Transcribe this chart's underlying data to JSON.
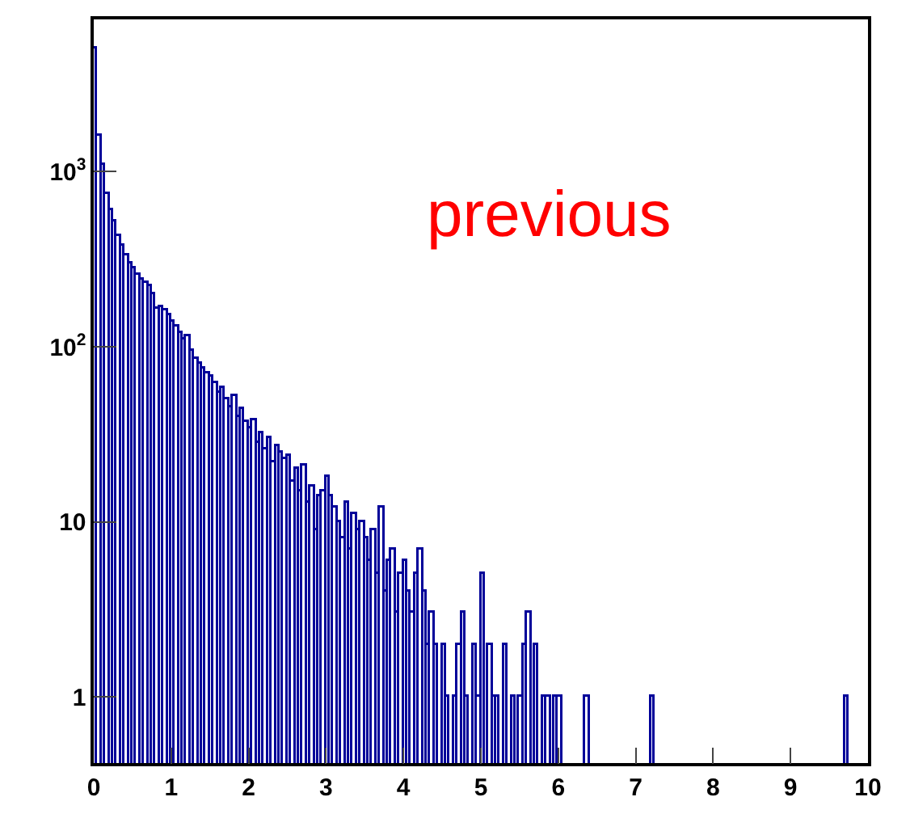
{
  "chart_data": {
    "type": "histogram",
    "bins": [
      0,
      0.05,
      0.1,
      0.15,
      0.2,
      0.25,
      0.3,
      0.35,
      0.4,
      0.45,
      0.5,
      0.55,
      0.6,
      0.65,
      0.7,
      0.75,
      0.8,
      0.85,
      0.9,
      0.95,
      1,
      1.05,
      1.1,
      1.15,
      1.2,
      1.25,
      1.3,
      1.35,
      1.4,
      1.45,
      1.5,
      1.55,
      1.6,
      1.65,
      1.7,
      1.75,
      1.8,
      1.85,
      1.9,
      1.95,
      2,
      2.05,
      2.1,
      2.15,
      2.2,
      2.25,
      2.3,
      2.35,
      2.4,
      2.45,
      2.5,
      2.55,
      2.6,
      2.65,
      2.7,
      2.75,
      2.8,
      2.85,
      2.9,
      2.95,
      3,
      3.05,
      3.1,
      3.15,
      3.2,
      3.25,
      3.3,
      3.35,
      3.4,
      3.45,
      3.5,
      3.55,
      3.6,
      3.65,
      3.7,
      3.75,
      3.8,
      3.85,
      3.9,
      3.95,
      4,
      4.05,
      4.1,
      4.15,
      4.2,
      4.25,
      4.3,
      4.35,
      4.4,
      4.45,
      4.5,
      4.55,
      4.6,
      4.65,
      4.7,
      4.75,
      4.8,
      4.85,
      4.9,
      4.95,
      5,
      5.05,
      5.1,
      5.15,
      5.2,
      5.25,
      5.3,
      5.35,
      5.4,
      5.45,
      5.5,
      5.55,
      5.6,
      5.65,
      5.7,
      5.75,
      5.8,
      5.85,
      5.9,
      5.95,
      6,
      6.05,
      6.1,
      6.15,
      6.2,
      6.25,
      6.3,
      6.35,
      6.4,
      6.45,
      6.5,
      6.55,
      6.6,
      6.65,
      6.7,
      6.75,
      6.8,
      6.85,
      6.9,
      6.95,
      7,
      7.05,
      7.1,
      7.15,
      7.2,
      7.25,
      7.3,
      7.35,
      7.4,
      7.45,
      7.5,
      7.55,
      7.6,
      7.65,
      7.7,
      7.75,
      7.8,
      7.85,
      7.9,
      7.95,
      8,
      8.05,
      8.1,
      8.15,
      8.2,
      8.25,
      8.3,
      8.35,
      8.4,
      8.45,
      8.5,
      8.55,
      8.6,
      8.65,
      8.7,
      8.75,
      8.8,
      8.85,
      8.9,
      8.95,
      9,
      9.05,
      9.1,
      9.15,
      9.2,
      9.25,
      9.3,
      9.35,
      9.4,
      9.45,
      9.5,
      9.55,
      9.6,
      9.65,
      9.7,
      9.75,
      9.8,
      9.85,
      9.9,
      9.95,
      10
    ],
    "values": [
      5000,
      1600,
      1100,
      750,
      600,
      520,
      430,
      380,
      330,
      300,
      280,
      260,
      240,
      230,
      220,
      200,
      165,
      170,
      160,
      150,
      140,
      130,
      120,
      110,
      115,
      95,
      85,
      80,
      75,
      70,
      68,
      62,
      55,
      58,
      50,
      45,
      52,
      40,
      44,
      37,
      34,
      38,
      28,
      32,
      26,
      30,
      22,
      27,
      25,
      23,
      24,
      17,
      20,
      15,
      21,
      13,
      16,
      9,
      14,
      15,
      18,
      14,
      12,
      10,
      8,
      13,
      7,
      11,
      9,
      10,
      8,
      6,
      9,
      5,
      12,
      4,
      6,
      7,
      3,
      5,
      6,
      4,
      3,
      5,
      7,
      4,
      2,
      3,
      2,
      null,
      2,
      1,
      null,
      1,
      2,
      3,
      1,
      null,
      2,
      1,
      5,
      null,
      2,
      1,
      1,
      null,
      2,
      null,
      1,
      null,
      1,
      2,
      3,
      null,
      2,
      null,
      1,
      1,
      null,
      1,
      1,
      null,
      null,
      null,
      null,
      null,
      null,
      1,
      null,
      null,
      null,
      null,
      null,
      null,
      null,
      null,
      null,
      null,
      null,
      null,
      null,
      null,
      null,
      null,
      1,
      null,
      null,
      null,
      null,
      null,
      null,
      null,
      null,
      null,
      null,
      null,
      null,
      null,
      null,
      null,
      null,
      null,
      null,
      null,
      null,
      null,
      null,
      null,
      null,
      null,
      null,
      null,
      null,
      null,
      null,
      null,
      null,
      null,
      null,
      null,
      null,
      null,
      null,
      null,
      null,
      null,
      null,
      null,
      null,
      null,
      null,
      null,
      null,
      null,
      1,
      null,
      null,
      null,
      null,
      null
    ],
    "color": "#000099",
    "log": true,
    "xlim": [
      0,
      10
    ],
    "xticks": [
      0,
      1,
      2,
      3,
      4,
      5,
      6,
      7,
      8,
      9,
      10
    ],
    "ylim": [
      0.42,
      7400
    ],
    "yticks": [
      1,
      10,
      {
        "value": 100,
        "label": "10$^{2}$"
      },
      {
        "value": 1000,
        "label": "10$^{3}$"
      }
    ],
    "annotations": [
      "previous"
    ]
  }
}
